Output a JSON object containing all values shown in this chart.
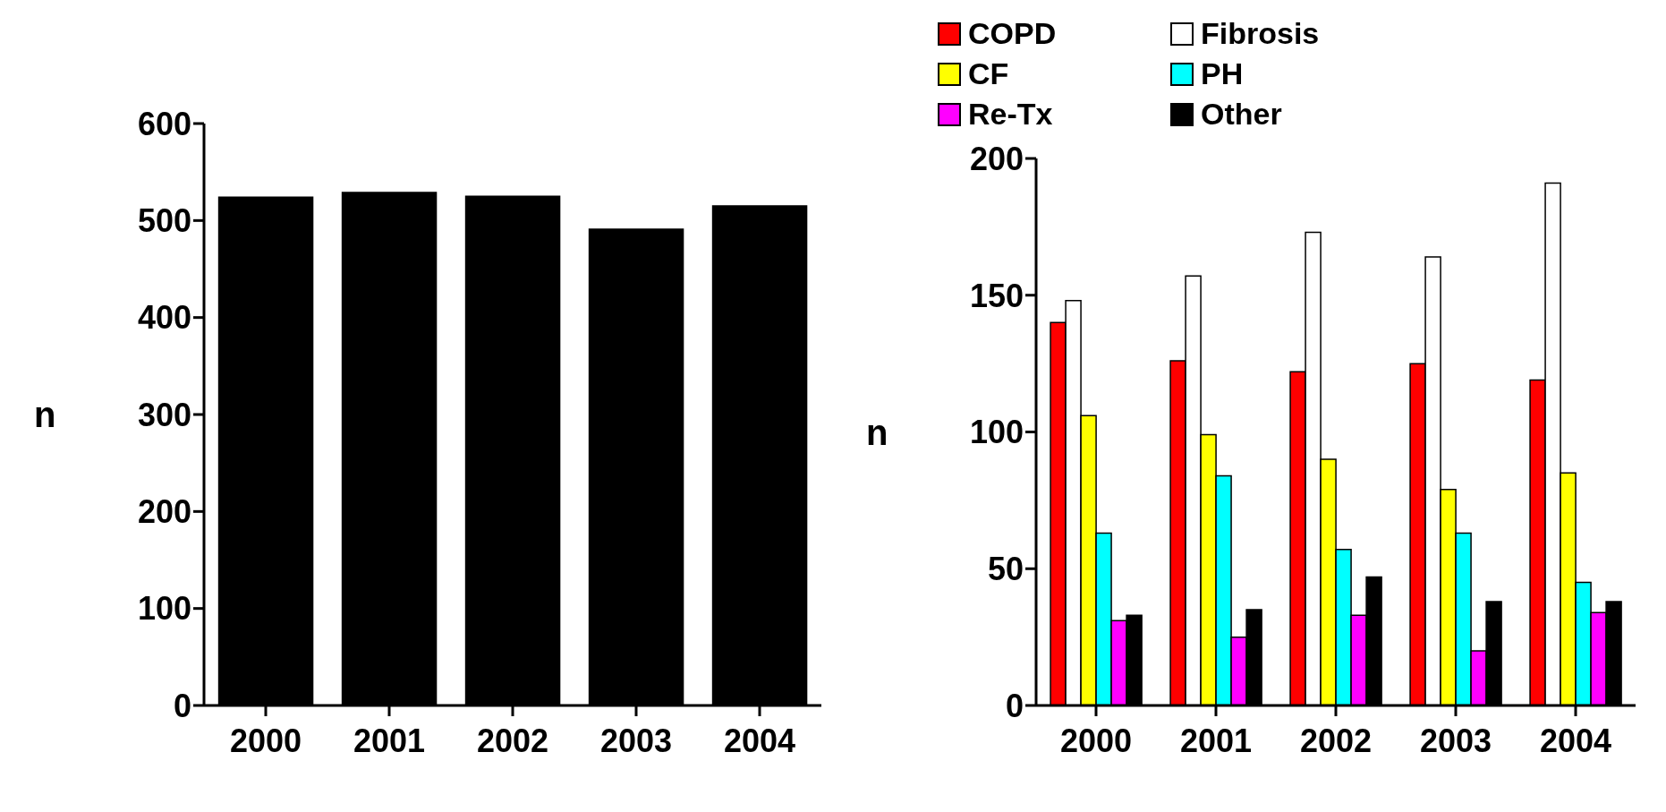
{
  "chart_data": [
    {
      "type": "bar",
      "ylabel": "n",
      "categories": [
        "2000",
        "2001",
        "2002",
        "2003",
        "2004"
      ],
      "series": [
        {
          "color": "#000000",
          "values": [
            524,
            529,
            525,
            491,
            515
          ]
        }
      ],
      "ylim": [
        0,
        600
      ],
      "yticks": [
        0,
        100,
        200,
        300,
        400,
        500,
        600
      ],
      "grid": false,
      "legend": false
    },
    {
      "type": "bar",
      "ylabel": "n",
      "categories": [
        "2000",
        "2001",
        "2002",
        "2003",
        "2004"
      ],
      "series": [
        {
          "name": "COPD",
          "color": "#ff0000",
          "values": [
            140,
            126,
            122,
            125,
            119
          ]
        },
        {
          "name": "Fibrosis",
          "color": "#ffffff",
          "values": [
            148,
            157,
            173,
            164,
            191
          ]
        },
        {
          "name": "CF",
          "color": "#ffff00",
          "values": [
            106,
            99,
            90,
            79,
            85
          ]
        },
        {
          "name": "PH",
          "color": "#00ffff",
          "values": [
            63,
            84,
            57,
            63,
            45
          ]
        },
        {
          "name": "Re-Tx",
          "color": "#ff00ff",
          "values": [
            31,
            25,
            33,
            20,
            34
          ]
        },
        {
          "name": "Other",
          "color": "#000000",
          "values": [
            33,
            35,
            47,
            38,
            38
          ]
        }
      ],
      "ylim": [
        0,
        200
      ],
      "yticks": [
        0,
        50,
        100,
        150,
        200
      ],
      "grid": false,
      "legend": "top"
    }
  ]
}
